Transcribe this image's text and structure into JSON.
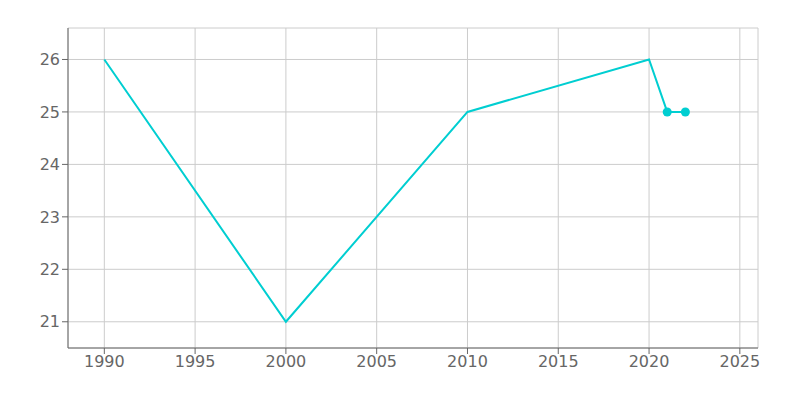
{
  "chart_data": {
    "type": "line",
    "series": [
      {
        "type": "line",
        "x": [
          1990,
          2000,
          2010,
          2020,
          2021,
          2022
        ],
        "values": [
          26,
          21,
          25,
          26,
          25,
          25
        ],
        "color": "#00CED1"
      },
      {
        "type": "scatter",
        "x": [
          2021,
          2022
        ],
        "values": [
          25,
          25
        ],
        "color": "#00CED1",
        "marker": "circle"
      }
    ],
    "xlim": [
      1988,
      2026
    ],
    "ylim": [
      20.5,
      26.6
    ],
    "xticks": [
      1990,
      1995,
      2000,
      2005,
      2010,
      2015,
      2020,
      2025
    ],
    "yticks": [
      21,
      22,
      23,
      24,
      25,
      26
    ],
    "grid": true
  }
}
